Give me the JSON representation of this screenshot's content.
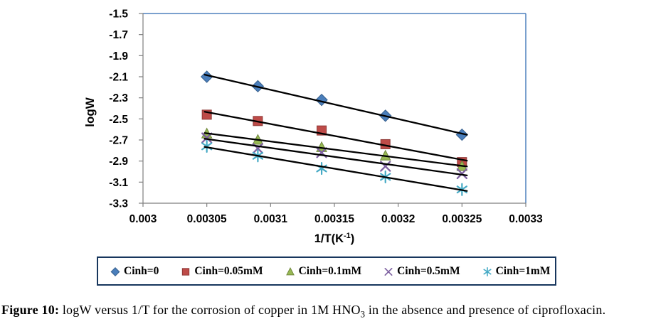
{
  "figure": {
    "caption": {
      "label": "Figure 10:",
      "before_sub": " logW versus 1/T for the corrosion of copper in 1M HNO",
      "sub": "3",
      "after_sub": " in the absence and presence of ciprofloxacin."
    }
  },
  "chart_data": {
    "type": "scatter",
    "title": "",
    "ylabel": "logW",
    "xlabel": {
      "base": "1/T(K",
      "sup": "-1",
      "close": ")"
    },
    "x": [
      0.00305,
      0.00309,
      0.00314,
      0.00319,
      0.00325
    ],
    "series": [
      {
        "name": "Cinh=0",
        "marker": "diamond",
        "color": "#4A7EBB",
        "edge": "#38618E",
        "values": [
          -2.1,
          -2.19,
          -2.32,
          -2.47,
          -2.65
        ]
      },
      {
        "name": "Cinh=0.05mM",
        "marker": "square",
        "color": "#BE4B48",
        "edge": "#8E3836",
        "values": [
          -2.46,
          -2.52,
          -2.61,
          -2.74,
          -2.91
        ]
      },
      {
        "name": "Cinh=0.1mM",
        "marker": "triangle",
        "color": "#98B954",
        "edge": "#71893E",
        "values": [
          -2.64,
          -2.7,
          -2.77,
          -2.85,
          -2.95
        ]
      },
      {
        "name": "Cinh=0.5mM",
        "marker": "x",
        "color": "#7D60A0",
        "edge": "#5E4878",
        "values": [
          -2.68,
          -2.78,
          -2.82,
          -2.95,
          -3.02
        ]
      },
      {
        "name": "Cinh=1mM",
        "marker": "asterisk",
        "color": "#46AAC5",
        "edge": "#358093",
        "values": [
          -2.76,
          -2.85,
          -2.97,
          -3.05,
          -3.17
        ]
      }
    ],
    "x_ticks": [
      "0.003",
      "0.00305",
      "0.0031",
      "0.00315",
      "0.0032",
      "0.00325",
      "0.0033"
    ],
    "y_ticks": [
      "-1.5",
      "-1.7",
      "-1.9",
      "-2.1",
      "-2.3",
      "-2.5",
      "-2.7",
      "-2.9",
      "-3.1",
      "-3.3"
    ],
    "xlim": [
      0.003,
      0.0033
    ],
    "ylim": [
      -3.3,
      -1.5
    ],
    "grid": false,
    "legend_position": "bottom",
    "trendlines": "linear best-fit per series, black",
    "colors": {
      "axis": "#7F7F7F",
      "plot_border": "#4F81BD",
      "trendline": "#000000",
      "legend_border": "#17365D",
      "text": "#000000"
    }
  }
}
